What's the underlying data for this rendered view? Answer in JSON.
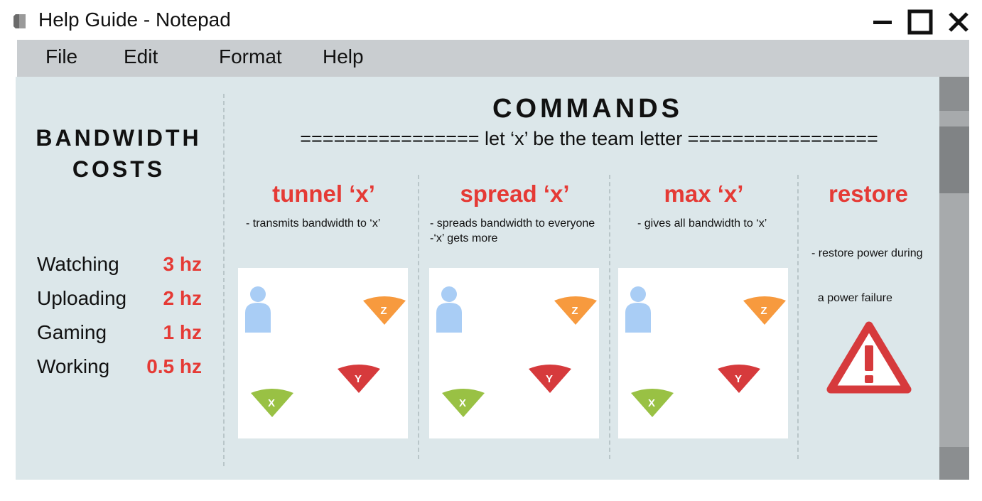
{
  "window": {
    "title": "Help Guide - Notepad",
    "controls": [
      "minimize-icon",
      "maximize-icon",
      "close-icon"
    ]
  },
  "menu": [
    "File",
    "Edit",
    "Format",
    "Help"
  ],
  "bandwidth": {
    "title_line1": "BANDWIDTH",
    "title_line2": "COSTS",
    "rows": [
      {
        "label": "Watching",
        "value": "3 hz"
      },
      {
        "label": "Uploading",
        "value": "2 hz"
      },
      {
        "label": "Gaming",
        "value": "1 hz"
      },
      {
        "label": "Working",
        "value": "0.5 hz"
      }
    ]
  },
  "commands": {
    "title": "COMMANDS",
    "subtitle": "================  let ‘x’ be the team letter  =================",
    "columns": [
      {
        "title": "tunnel ‘x’",
        "desc": [
          "- transmits bandwidth to ‘x’"
        ]
      },
      {
        "title": "spread ‘x’",
        "desc": [
          "- spreads bandwidth to everyone",
          "-‘x’ gets more"
        ]
      },
      {
        "title": "max ‘x’",
        "desc": [
          "- gives all bandwidth to ‘x’"
        ]
      },
      {
        "title": "restore",
        "desc": [
          "- restore power during",
          "  a power failure"
        ]
      }
    ]
  },
  "diagram": {
    "team_letters": [
      "Z",
      "Y",
      "X"
    ],
    "icons": [
      "person-icon",
      "wifi-wedge-icon",
      "warning-icon"
    ]
  },
  "colors": {
    "accent_red": "#e53a35",
    "menubar": "#c9cdd0",
    "content_bg": "#dce7ea",
    "person_blue": "#a9cdf5",
    "wedge_orange": "#f79a3e",
    "wedge_red": "#d63a3c",
    "wedge_green": "#99c144"
  }
}
